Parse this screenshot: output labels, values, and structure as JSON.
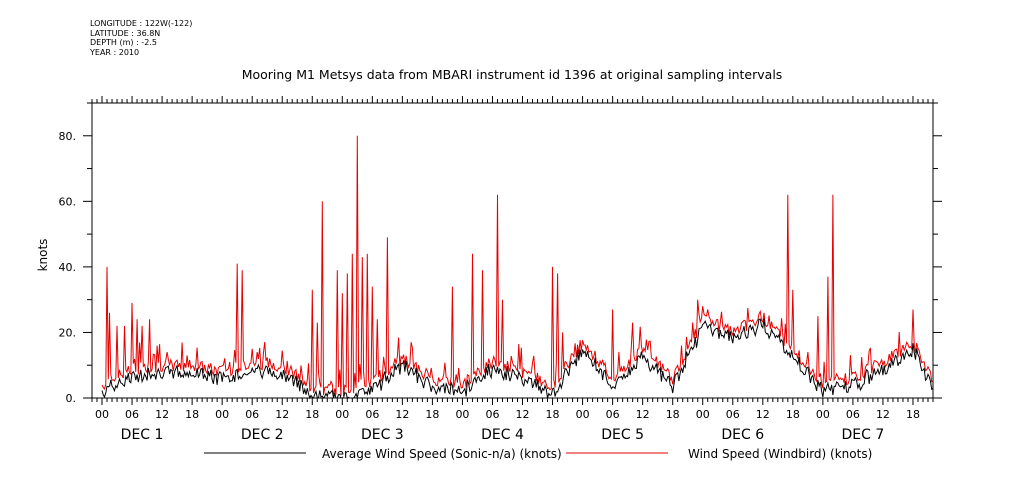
{
  "meta": {
    "longitude": "LONGITUDE : 122W(-122)",
    "latitude": "LATITUDE : 36.8N",
    "depth": "DEPTH (m) : -2.5",
    "year": "YEAR : 2010"
  },
  "colors": {
    "avg": "#000000",
    "windbird": "#e60000"
  },
  "chart_data": {
    "type": "line",
    "title": "Mooring M1 Metsys data from MBARI instrument id 1396 at original sampling intervals",
    "ylabel": "knots",
    "xlabel": "",
    "ylim": [
      0,
      90
    ],
    "xlim_hours": [
      -2,
      166
    ],
    "yticks": [
      "0.",
      "20.",
      "40.",
      "60.",
      "80."
    ],
    "hour_ticks": [
      "00",
      "06",
      "12",
      "18",
      "00",
      "06",
      "12",
      "18",
      "00",
      "06",
      "12",
      "18",
      "00",
      "06",
      "12",
      "18",
      "00",
      "06",
      "12",
      "18",
      "00",
      "06",
      "12",
      "18",
      "00",
      "06",
      "12",
      "18"
    ],
    "day_labels": [
      "DEC  1",
      "DEC  2",
      "DEC  3",
      "DEC  4",
      "DEC  5",
      "DEC  6",
      "DEC  7"
    ],
    "legend": {
      "avg_label": "Average Wind Speed (Sonic-n/a) (knots)",
      "windbird_label": "Wind Speed (Windbird) (knots)"
    },
    "baseline_hours": [
      0,
      6,
      12,
      18,
      24,
      30,
      36,
      42,
      48,
      54,
      60,
      66,
      72,
      78,
      84,
      90,
      96,
      102,
      108,
      114,
      120,
      126,
      132,
      138,
      144,
      150,
      156,
      162,
      166
    ],
    "baseline_knots": [
      4,
      9,
      10,
      10,
      8,
      11,
      10,
      3,
      2,
      5,
      12,
      6,
      4,
      11,
      8,
      4,
      17,
      6,
      15,
      6,
      24,
      20,
      25,
      15,
      5,
      6,
      11,
      17,
      6
    ],
    "spike_hours": [
      1,
      1.5,
      3,
      4.5,
      6,
      7,
      8,
      9.5,
      11,
      13,
      17,
      27,
      28,
      30,
      31,
      42,
      43,
      44,
      47,
      48,
      49,
      50,
      51,
      52,
      53,
      54,
      55,
      57,
      70,
      74,
      76,
      79,
      80,
      90,
      91,
      92,
      102,
      106,
      119,
      120,
      121,
      137,
      138,
      143,
      145,
      146,
      162
    ],
    "spike_knots": [
      40,
      26,
      22,
      22,
      29,
      24,
      22,
      24,
      16,
      14,
      13,
      41,
      39,
      15,
      14,
      33,
      23,
      60,
      39,
      32,
      38,
      44,
      80,
      43,
      44,
      34,
      24,
      49,
      34,
      44,
      39,
      62,
      30,
      40,
      38,
      20,
      27,
      23,
      30,
      28,
      27,
      62,
      33,
      25,
      37,
      62,
      27
    ]
  }
}
